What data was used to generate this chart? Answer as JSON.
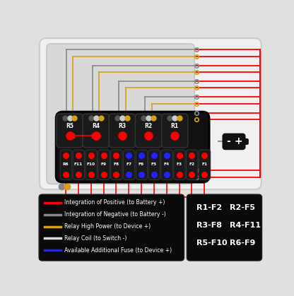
{
  "bg_color": "#e0e0e0",
  "outer_box_fc": "#f0f0f0",
  "outer_box_ec": "#cccccc",
  "inner_box_fc": "#d8d8d8",
  "inner_box_ec": "#c0c0c0",
  "fuse_box_fc": "#111111",
  "fuse_box_ec": "#000000",
  "relay_labels": [
    "R5",
    "R4",
    "R3",
    "R2",
    "R1"
  ],
  "fuse_labels": [
    "R6",
    "F11",
    "F10",
    "F9",
    "F8",
    "F7",
    "F6",
    "F5",
    "F4",
    "F3",
    "F2",
    "F1"
  ],
  "relay_dot_colors": [
    [
      "#555555",
      "#cccccc",
      "#d4a017"
    ],
    [
      "#555555",
      "#cccccc",
      "#d4a017"
    ],
    [
      "#555555",
      "#cccccc",
      "#d4a017"
    ],
    [
      "#555555",
      "#cccccc",
      "#d4a017"
    ],
    [
      "#555555",
      "#cccccc",
      "#d4a017"
    ]
  ],
  "fuse_blue_indices": [
    5,
    6,
    7,
    8
  ],
  "legend_lines": [
    {
      "color": "#ff0000",
      "label": "Integration of Positive (to Battery +)"
    },
    {
      "color": "#888888",
      "label": "Integration of Negative (to Battery -)"
    },
    {
      "color": "#d4a017",
      "label": "Relay High Power (to Device +)"
    },
    {
      "color": "#dddddd",
      "label": "Relay Coil (to Switch -)"
    },
    {
      "color": "#2222ff",
      "label": "Available Additional Fuse (to Device +)"
    }
  ],
  "relay_map": [
    [
      "R1-F2",
      "R2-F5"
    ],
    [
      "R3-F8",
      "R4-F11"
    ],
    [
      "R5-F10",
      "R6-F9"
    ]
  ],
  "red": "#ff0000",
  "gray": "#888888",
  "yellow": "#d4a017",
  "white": "#dddddd",
  "blue": "#2222ff",
  "black": "#111111"
}
